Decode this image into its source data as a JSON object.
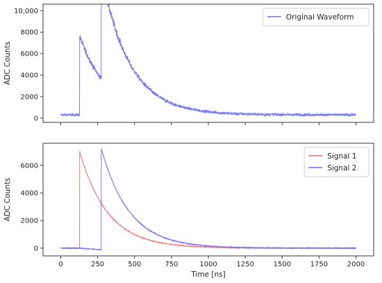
{
  "chart_data": [
    {
      "type": "line",
      "ylabel": "ADC Counts",
      "xlabel": "",
      "xlim": [
        -120,
        2120
      ],
      "ylim": [
        -400,
        10600
      ],
      "xticks": [
        0,
        250,
        500,
        750,
        1000,
        1250,
        1500,
        1750,
        2000
      ],
      "xtick_labels_visible": false,
      "yticks": [
        0,
        2000,
        4000,
        6000,
        8000,
        10000
      ],
      "ytick_labels": [
        "0",
        "2000",
        "4000",
        "6000",
        "8000",
        "10,000"
      ],
      "legend": "top-right",
      "grid": false,
      "series": [
        {
          "name": "Original Waveform",
          "color": "#6d6df0",
          "baseline": 300,
          "noise": 130,
          "pulses": [
            {
              "start": 128,
              "peak": 7300,
              "decay_ns": 190
            },
            {
              "start": 275,
              "peak": 9800,
              "decay_ns": 190
            }
          ]
        }
      ]
    },
    {
      "type": "line",
      "ylabel": "ADC Counts",
      "xlabel": "Time [ns]",
      "xlim": [
        -120,
        2120
      ],
      "ylim": [
        -560,
        7600
      ],
      "xticks": [
        0,
        250,
        500,
        750,
        1000,
        1250,
        1500,
        1750,
        2000
      ],
      "xtick_labels": [
        "0",
        "250",
        "500",
        "750",
        "1000",
        "1250",
        "1500",
        "1750",
        "2000"
      ],
      "yticks": [
        0,
        2000,
        4000,
        6000
      ],
      "ytick_labels": [
        "0",
        "2000",
        "4000",
        "6000"
      ],
      "legend": "top-right",
      "grid": false,
      "series": [
        {
          "name": "Signal 1",
          "color": "#f07070",
          "baseline": 0,
          "pre_dip": 0,
          "noise": 25,
          "pulses": [
            {
              "start": 128,
              "peak": 7000,
              "decay_ns": 190
            }
          ]
        },
        {
          "name": "Signal 2",
          "color": "#6d6df0",
          "baseline": 0,
          "pre_dip": -120,
          "noise": 25,
          "pulses": [
            {
              "start": 275,
              "peak": 7200,
              "decay_ns": 190
            }
          ]
        }
      ]
    }
  ]
}
